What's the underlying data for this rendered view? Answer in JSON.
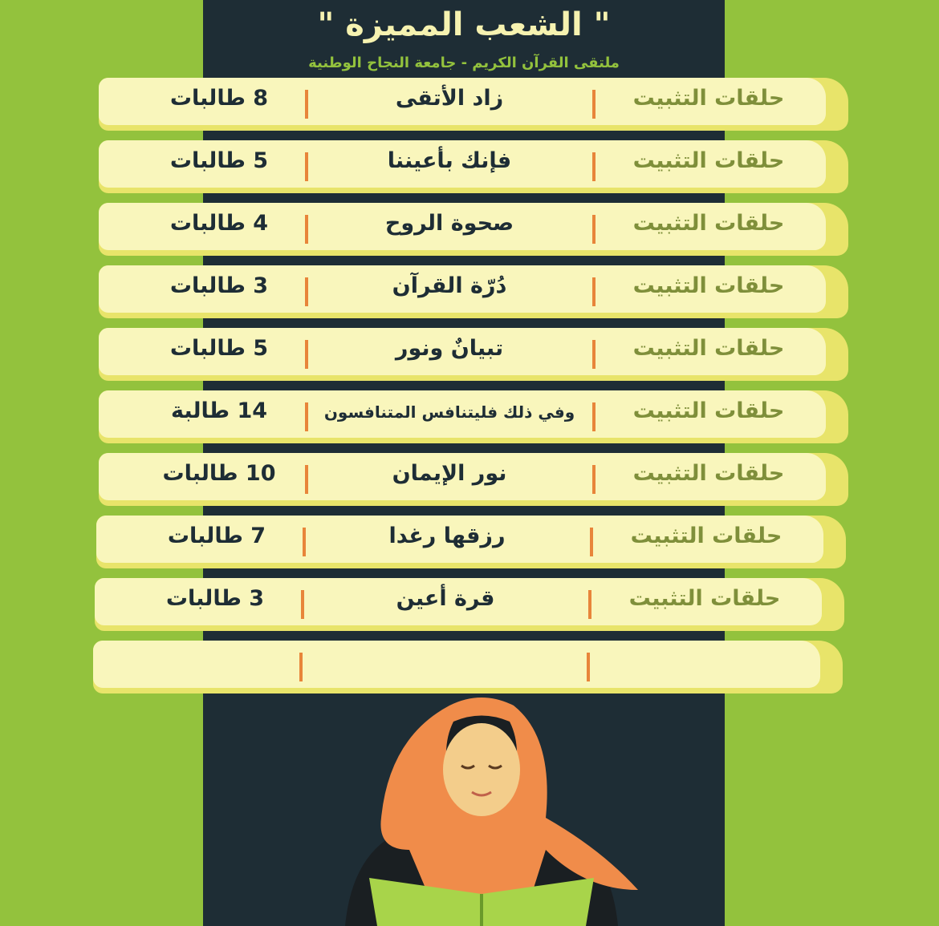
{
  "header": {
    "title": "\" الشعب المميزة \"",
    "subtitle": "ملتقى القرآن الكريم - جامعة النجاح الوطنية"
  },
  "rows": [
    {
      "type": "حلقات التثبيت",
      "name": "زاد الأتقى",
      "count": "8 طالبات"
    },
    {
      "type": "حلقات التثبيت",
      "name": "فإنك بأعيننا",
      "count": "5 طالبات"
    },
    {
      "type": "حلقات التثبيت",
      "name": "صحوة الروح",
      "count": "4 طالبات"
    },
    {
      "type": "حلقات التثبيت",
      "name": "دُرّة القرآن",
      "count": "3 طالبات"
    },
    {
      "type": "حلقات التثبيت",
      "name": "تبيانٌ ونور",
      "count": "5 طالبات"
    },
    {
      "type": "حلقات التثبيت",
      "name": "وفي ذلك فليتنافس المتنافسون",
      "count": "14 طالبة"
    },
    {
      "type": "حلقات التثبيت",
      "name": "نور الإيمان",
      "count": "10 طالبات"
    },
    {
      "type": "حلقات التثبيت",
      "name": "رزقها رغدا",
      "count": "7 طالبات"
    },
    {
      "type": "حلقات التثبيت",
      "name": "قرة أعين",
      "count": "3 طالبات"
    },
    {
      "type": "",
      "name": "",
      "count": ""
    }
  ],
  "colors": {
    "background": "#93c23d",
    "panel": "#1e2d35",
    "row": "#f9f6bc",
    "divider": "#e8853a"
  }
}
